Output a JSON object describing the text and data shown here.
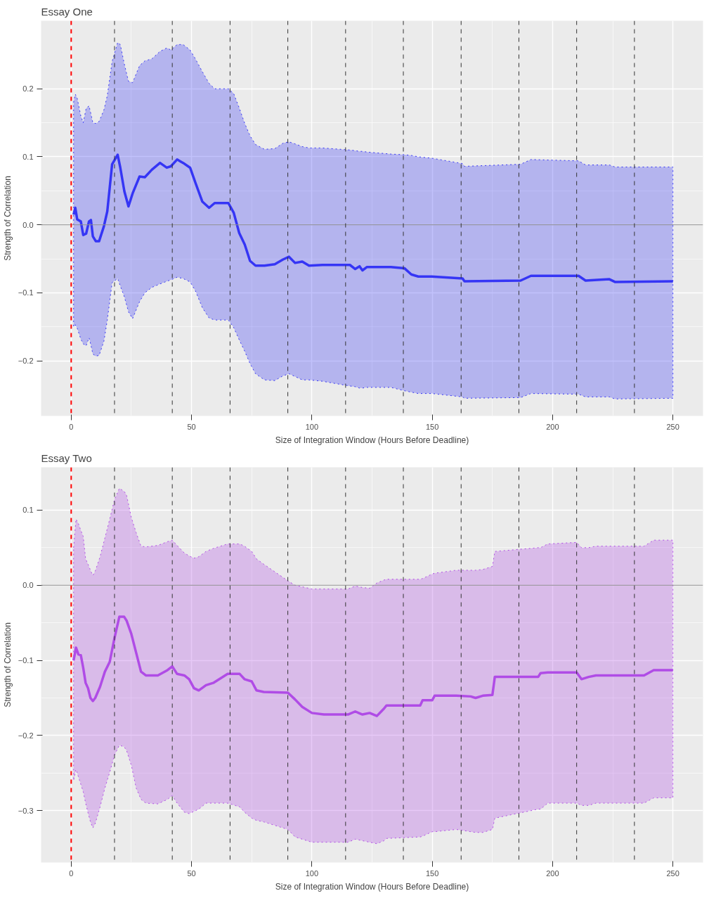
{
  "chart_data": [
    {
      "type": "line",
      "title": "Essay One",
      "xlabel": "Size of Integration Window (Hours Before Deadline)",
      "ylabel": "Strength of Correlation",
      "xlim": [
        -12.5,
        262.5
      ],
      "ylim": [
        -0.281,
        0.3
      ],
      "xticks": [
        0,
        50,
        100,
        150,
        200,
        250
      ],
      "yticks": [
        -0.2,
        -0.1,
        {
          "value": 0,
          "label": "0.0"
        },
        0.1,
        0.2
      ],
      "grid": true,
      "line_style": "solid",
      "marker": "none",
      "ref_lines": [
        {
          "axis": "y",
          "value": 0,
          "color": "#8c8c8c",
          "line_style": "solid"
        },
        {
          "axis": "x",
          "value": 0,
          "color": "#ff0000",
          "line_style": "dashed"
        },
        {
          "axis": "x",
          "value": 18,
          "color": "#333333",
          "line_style": "dashed"
        },
        {
          "axis": "x",
          "value": 42,
          "color": "#333333",
          "line_style": "dashed"
        },
        {
          "axis": "x",
          "value": 66,
          "color": "#333333",
          "line_style": "dashed"
        },
        {
          "axis": "x",
          "value": 90,
          "color": "#333333",
          "line_style": "dashed"
        },
        {
          "axis": "x",
          "value": 114,
          "color": "#333333",
          "line_style": "dashed"
        },
        {
          "axis": "x",
          "value": 138,
          "color": "#333333",
          "line_style": "dashed"
        },
        {
          "axis": "x",
          "value": 162,
          "color": "#333333",
          "line_style": "dashed"
        },
        {
          "axis": "x",
          "value": 186,
          "color": "#333333",
          "line_style": "dashed"
        },
        {
          "axis": "x",
          "value": 210,
          "color": "#333333",
          "line_style": "dashed"
        },
        {
          "axis": "x",
          "value": 234,
          "color": "#333333",
          "line_style": "dashed"
        }
      ],
      "series": [
        {
          "color": "#3535f5",
          "x": [
            1,
            1.7,
            2.5,
            4,
            5,
            6.2,
            7.4,
            8.2,
            9,
            10.2,
            11.6,
            13.6,
            15,
            17,
            19.3,
            20.4,
            22.1,
            23.8,
            25.5,
            28.4,
            30.6,
            33.5,
            36.9,
            39.7,
            41.4,
            44,
            46.5,
            49.4,
            51.6,
            54.5,
            57.3,
            59.6,
            65.3,
            67.5,
            69.8,
            72.1,
            74.3,
            76.6,
            80.3,
            84.6,
            88,
            90.5,
            93,
            96,
            98.8,
            104.4,
            115.8,
            118,
            119.8,
            121,
            122.9,
            132.8,
            138.5,
            141.3,
            144.2,
            149.8,
            162.6,
            163.4,
            186.7,
            191,
            210.8,
            213.7,
            223.6,
            225.9,
            250
          ],
          "values": [
            0.015,
            0.025,
            0.008,
            0.005,
            -0.015,
            -0.013,
            0.005,
            0.007,
            -0.017,
            -0.024,
            -0.024,
            -0.002,
            0.02,
            0.089,
            0.103,
            0.084,
            0.049,
            0.027,
            0.046,
            0.071,
            0.07,
            0.081,
            0.091,
            0.084,
            0.086,
            0.096,
            0.091,
            0.084,
            0.062,
            0.034,
            0.025,
            0.032,
            0.032,
            0.018,
            -0.012,
            -0.029,
            -0.053,
            -0.06,
            -0.06,
            -0.058,
            -0.051,
            -0.047,
            -0.056,
            -0.054,
            -0.06,
            -0.059,
            -0.059,
            -0.065,
            -0.061,
            -0.067,
            -0.062,
            -0.062,
            -0.064,
            -0.073,
            -0.076,
            -0.076,
            -0.079,
            -0.083,
            -0.082,
            -0.075,
            -0.075,
            -0.082,
            -0.08,
            -0.084,
            -0.083
          ],
          "upper": [
            0.18,
            0.192,
            0.186,
            0.16,
            0.15,
            0.171,
            0.175,
            0.163,
            0.15,
            0.149,
            0.152,
            0.169,
            0.19,
            0.24,
            0.268,
            0.265,
            0.236,
            0.211,
            0.209,
            0.234,
            0.241,
            0.244,
            0.255,
            0.26,
            0.257,
            0.265,
            0.265,
            0.257,
            0.244,
            0.225,
            0.208,
            0.2,
            0.2,
            0.193,
            0.172,
            0.149,
            0.131,
            0.118,
            0.111,
            0.112,
            0.12,
            0.122,
            0.119,
            0.115,
            0.113,
            0.113,
            0.11,
            0.109,
            0.108,
            0.108,
            0.107,
            0.104,
            0.103,
            0.102,
            0.1,
            0.098,
            0.09,
            0.086,
            0.089,
            0.096,
            0.094,
            0.088,
            0.088,
            0.085,
            0.085
          ],
          "lower": [
            -0.15,
            -0.147,
            -0.152,
            -0.168,
            -0.175,
            -0.178,
            -0.166,
            -0.177,
            -0.19,
            -0.193,
            -0.192,
            -0.171,
            -0.14,
            -0.085,
            -0.079,
            -0.09,
            -0.106,
            -0.128,
            -0.138,
            -0.113,
            -0.1,
            -0.092,
            -0.087,
            -0.083,
            -0.081,
            -0.077,
            -0.079,
            -0.084,
            -0.097,
            -0.122,
            -0.137,
            -0.14,
            -0.14,
            -0.151,
            -0.169,
            -0.186,
            -0.204,
            -0.219,
            -0.228,
            -0.229,
            -0.222,
            -0.219,
            -0.223,
            -0.228,
            -0.228,
            -0.23,
            -0.237,
            -0.238,
            -0.24,
            -0.24,
            -0.239,
            -0.239,
            -0.244,
            -0.246,
            -0.248,
            -0.248,
            -0.253,
            -0.255,
            -0.254,
            -0.248,
            -0.249,
            -0.253,
            -0.253,
            -0.256,
            -0.255
          ]
        }
      ]
    },
    {
      "type": "line",
      "title": "Essay Two",
      "xlabel": "Size of Integration Window (Hours Before Deadline)",
      "ylabel": "Strength of Correlation",
      "xlim": [
        -12.5,
        262.5
      ],
      "ylim": [
        -0.369,
        0.157
      ],
      "xticks": [
        0,
        50,
        100,
        150,
        200,
        250
      ],
      "yticks": [
        -0.3,
        -0.2,
        -0.1,
        {
          "value": 0,
          "label": "0.0"
        },
        0.1
      ],
      "grid": true,
      "line_style": "solid",
      "marker": "none",
      "ref_lines": [
        {
          "axis": "y",
          "value": 0,
          "color": "#8c8c8c",
          "line_style": "solid"
        },
        {
          "axis": "x",
          "value": 0,
          "color": "#ff0000",
          "line_style": "dashed"
        },
        {
          "axis": "x",
          "value": 18,
          "color": "#333333",
          "line_style": "dashed"
        },
        {
          "axis": "x",
          "value": 42,
          "color": "#333333",
          "line_style": "dashed"
        },
        {
          "axis": "x",
          "value": 66,
          "color": "#333333",
          "line_style": "dashed"
        },
        {
          "axis": "x",
          "value": 90,
          "color": "#333333",
          "line_style": "dashed"
        },
        {
          "axis": "x",
          "value": 114,
          "color": "#333333",
          "line_style": "dashed"
        },
        {
          "axis": "x",
          "value": 138,
          "color": "#333333",
          "line_style": "dashed"
        },
        {
          "axis": "x",
          "value": 162,
          "color": "#333333",
          "line_style": "dashed"
        },
        {
          "axis": "x",
          "value": 186,
          "color": "#333333",
          "line_style": "dashed"
        },
        {
          "axis": "x",
          "value": 210,
          "color": "#333333",
          "line_style": "dashed"
        },
        {
          "axis": "x",
          "value": 234,
          "color": "#333333",
          "line_style": "dashed"
        }
      ],
      "series": [
        {
          "color": "#b04ce6",
          "x": [
            1,
            2,
            3,
            4,
            5,
            6,
            7,
            8,
            9,
            10,
            12,
            14,
            16,
            18,
            20,
            22,
            23,
            25,
            27,
            29,
            31,
            36,
            40,
            42,
            44,
            47,
            49,
            51,
            53,
            56,
            59,
            62,
            65,
            70,
            72,
            75,
            77,
            80,
            90,
            93,
            96,
            100,
            105,
            115,
            118,
            121,
            124,
            127,
            130,
            131,
            145,
            146,
            150,
            151,
            160,
            166,
            168,
            171,
            175,
            176,
            194,
            195,
            198,
            210,
            212,
            215,
            218,
            238,
            242,
            250
          ],
          "values": [
            -0.1,
            -0.083,
            -0.092,
            -0.093,
            -0.11,
            -0.13,
            -0.137,
            -0.15,
            -0.154,
            -0.15,
            -0.135,
            -0.115,
            -0.102,
            -0.07,
            -0.042,
            -0.042,
            -0.047,
            -0.065,
            -0.09,
            -0.115,
            -0.12,
            -0.12,
            -0.113,
            -0.108,
            -0.118,
            -0.12,
            -0.125,
            -0.137,
            -0.14,
            -0.133,
            -0.13,
            -0.124,
            -0.118,
            -0.118,
            -0.125,
            -0.128,
            -0.14,
            -0.142,
            -0.143,
            -0.152,
            -0.162,
            -0.17,
            -0.172,
            -0.172,
            -0.168,
            -0.172,
            -0.17,
            -0.174,
            -0.164,
            -0.16,
            -0.16,
            -0.153,
            -0.153,
            -0.147,
            -0.147,
            -0.148,
            -0.15,
            -0.147,
            -0.146,
            -0.122,
            -0.122,
            -0.117,
            -0.116,
            -0.116,
            -0.125,
            -0.122,
            -0.12,
            -0.12,
            -0.113,
            -0.113
          ],
          "upper": [
            0.05,
            0.088,
            0.082,
            0.073,
            0.065,
            0.035,
            0.028,
            0.02,
            0.013,
            0.019,
            0.038,
            0.063,
            0.088,
            0.114,
            0.129,
            0.125,
            0.12,
            0.09,
            0.07,
            0.052,
            0.051,
            0.053,
            0.058,
            0.06,
            0.053,
            0.043,
            0.039,
            0.036,
            0.038,
            0.045,
            0.049,
            0.052,
            0.055,
            0.055,
            0.052,
            0.045,
            0.035,
            0.028,
            0.006,
            0.0,
            -0.002,
            -0.005,
            -0.005,
            -0.005,
            -0.001,
            -0.003,
            -0.004,
            0.003,
            0.007,
            0.008,
            0.008,
            0.009,
            0.015,
            0.016,
            0.02,
            0.02,
            0.02,
            0.021,
            0.025,
            0.045,
            0.05,
            0.05,
            0.055,
            0.057,
            0.05,
            0.05,
            0.052,
            0.052,
            0.06,
            0.06
          ],
          "lower": [
            -0.26,
            -0.245,
            -0.255,
            -0.265,
            -0.275,
            -0.29,
            -0.303,
            -0.315,
            -0.323,
            -0.317,
            -0.295,
            -0.27,
            -0.249,
            -0.226,
            -0.213,
            -0.215,
            -0.22,
            -0.24,
            -0.27,
            -0.285,
            -0.29,
            -0.291,
            -0.285,
            -0.28,
            -0.29,
            -0.302,
            -0.304,
            -0.301,
            -0.298,
            -0.29,
            -0.29,
            -0.29,
            -0.29,
            -0.295,
            -0.302,
            -0.31,
            -0.313,
            -0.315,
            -0.325,
            -0.335,
            -0.338,
            -0.342,
            -0.342,
            -0.342,
            -0.338,
            -0.34,
            -0.342,
            -0.344,
            -0.34,
            -0.337,
            -0.335,
            -0.334,
            -0.328,
            -0.328,
            -0.325,
            -0.328,
            -0.329,
            -0.329,
            -0.325,
            -0.31,
            -0.298,
            -0.298,
            -0.29,
            -0.29,
            -0.293,
            -0.293,
            -0.29,
            -0.29,
            -0.283,
            -0.283
          ]
        }
      ]
    }
  ]
}
